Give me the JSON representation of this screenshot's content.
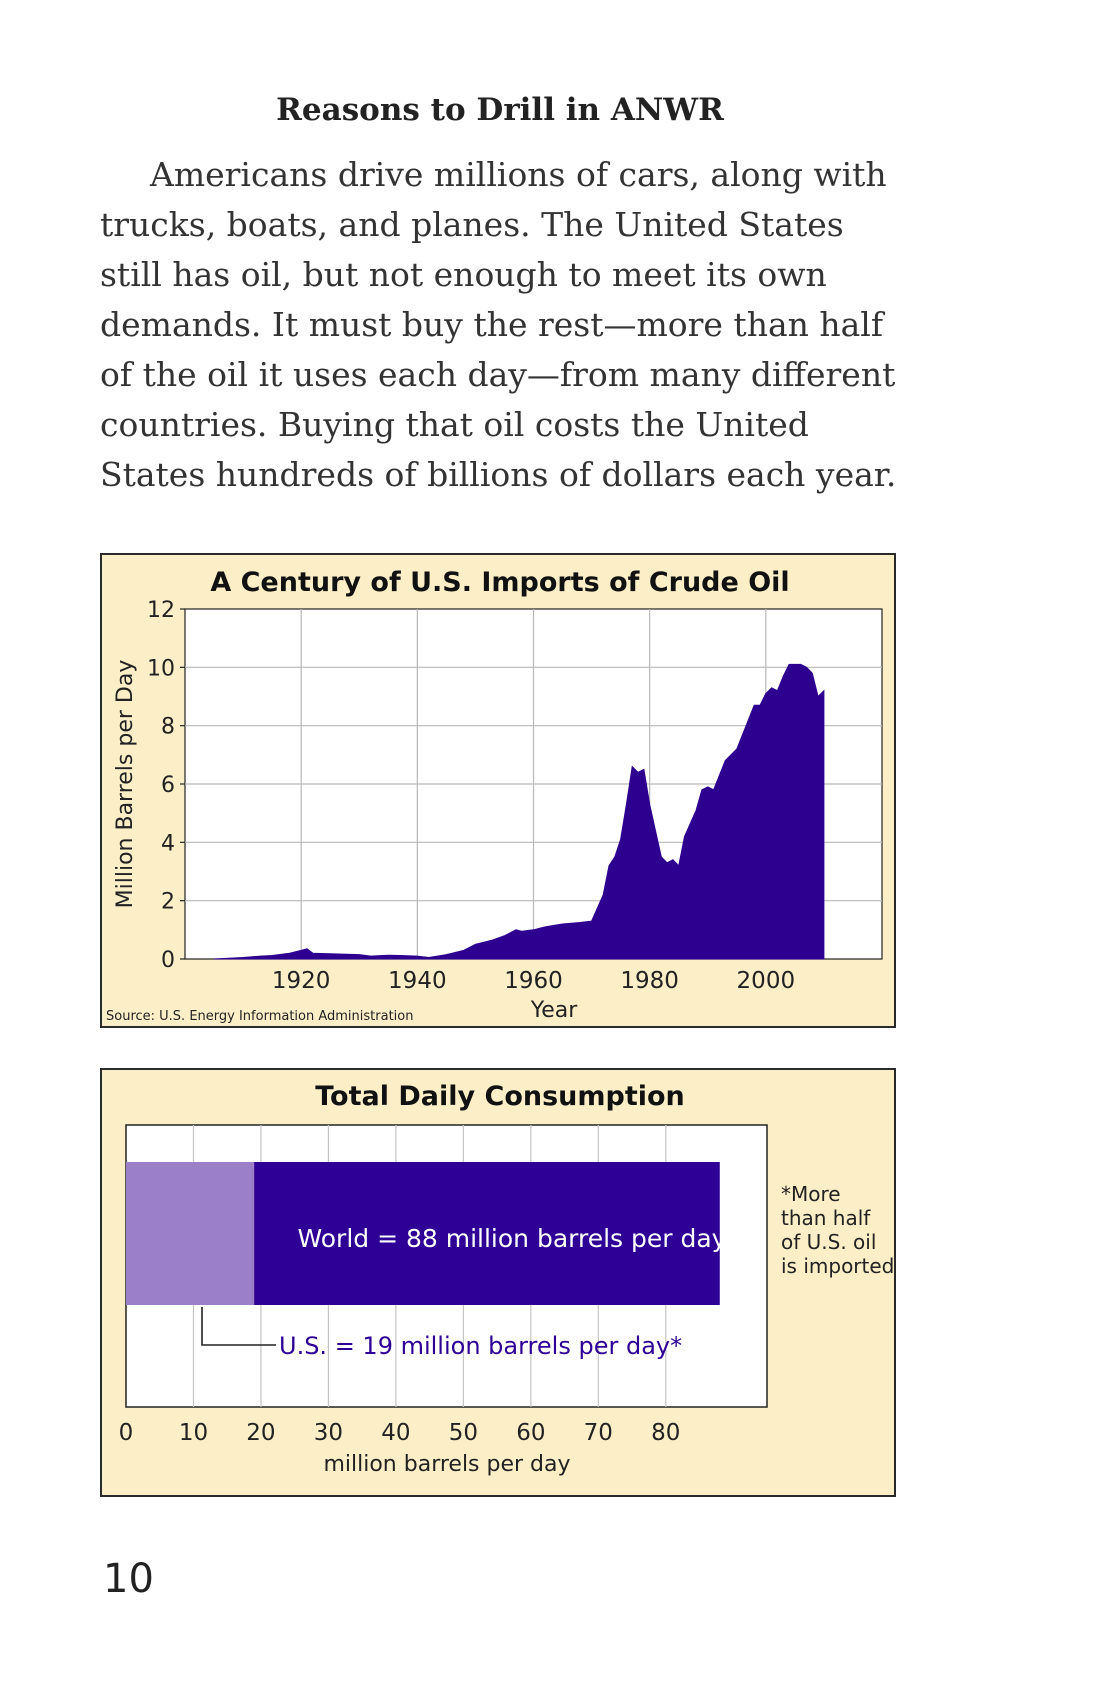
{
  "page": {
    "heading": "Reasons to Drill in ANWR",
    "paragraph": "Americans drive millions of cars, along with trucks, boats, and planes. The United States still has oil, but not enough to meet its own demands. It must buy the rest—more than half of the oil it uses each day—from many different countries. Buying that oil costs the United States hundreds of billions of dollars each year.",
    "page_number": "10"
  },
  "chart_data": [
    {
      "type": "area",
      "title": "A Century of U.S. Imports of Crude Oil",
      "xlabel": "Year",
      "ylabel": "Million Barrels per Day",
      "source": "Source: U.S. Energy Information Administration",
      "xlim": [
        1900,
        2020
      ],
      "ylim": [
        0,
        12
      ],
      "x_ticks": [
        "1920",
        "1940",
        "1960",
        "1980",
        "2000"
      ],
      "y_ticks": [
        "0",
        "2",
        "4",
        "6",
        "8",
        "10",
        "12"
      ],
      "grid": true,
      "color": "#2e0090",
      "series": [
        {
          "x": [
            1905,
            1910,
            1913,
            1915,
            1918,
            1920,
            1921,
            1922,
            1925,
            1930,
            1932,
            1935,
            1937,
            1940,
            1942,
            1945,
            1948,
            1950,
            1953,
            1955,
            1957,
            1958,
            1960,
            1962,
            1965,
            1968,
            1970,
            1972,
            1973,
            1974,
            1975,
            1976,
            1977,
            1978,
            1979,
            1980,
            1981,
            1982,
            1983,
            1984,
            1985,
            1986,
            1988,
            1989,
            1990,
            1991,
            1993,
            1995,
            1997,
            1998,
            1999,
            2000,
            2001,
            2002,
            2003,
            2004,
            2005,
            2006,
            2007,
            2008,
            2009,
            2010
          ],
          "y": [
            0.0,
            0.05,
            0.1,
            0.12,
            0.2,
            0.3,
            0.35,
            0.2,
            0.18,
            0.15,
            0.1,
            0.13,
            0.12,
            0.1,
            0.05,
            0.15,
            0.3,
            0.5,
            0.65,
            0.8,
            1.0,
            0.95,
            1.0,
            1.1,
            1.2,
            1.25,
            1.3,
            2.2,
            3.2,
            3.5,
            4.1,
            5.3,
            6.6,
            6.4,
            6.5,
            5.3,
            4.4,
            3.5,
            3.3,
            3.4,
            3.2,
            4.2,
            5.1,
            5.8,
            5.9,
            5.8,
            6.8,
            7.2,
            8.2,
            8.7,
            8.7,
            9.1,
            9.3,
            9.2,
            9.7,
            10.1,
            10.1,
            10.1,
            10.0,
            9.8,
            9.0,
            9.2
          ]
        }
      ]
    },
    {
      "type": "bar",
      "orientation": "horizontal",
      "title": "Total Daily Consumption",
      "xlabel": "million barrels per day",
      "xlim": [
        0,
        88
      ],
      "x_ticks": [
        "0",
        "10",
        "20",
        "30",
        "40",
        "50",
        "60",
        "70",
        "80"
      ],
      "grid": true,
      "bars": [
        {
          "label": "World = 88 million barrels per day",
          "value": 88,
          "color": "#2e0095"
        },
        {
          "label": "U.S. = 19 million barrels per day*",
          "value": 19,
          "color": "#9b80c9"
        }
      ],
      "note": [
        "*More",
        "than half",
        "of U.S. oil",
        "is imported"
      ]
    }
  ]
}
